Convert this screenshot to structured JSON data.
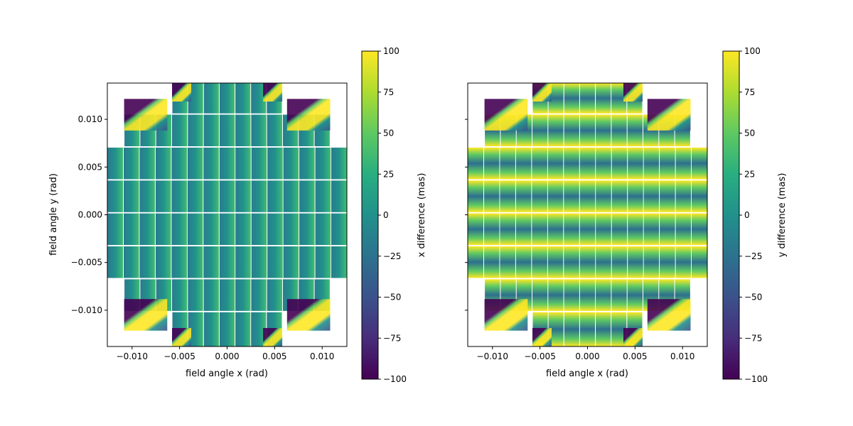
{
  "chart_data": [
    {
      "type": "heatmap",
      "panel": "left",
      "title": "",
      "xlabel": "field angle x (rad)",
      "ylabel": "field angle y (rad)",
      "xlim": [
        -0.0126,
        0.0126
      ],
      "ylim": [
        -0.0138,
        0.0138
      ],
      "xticks": [
        -0.01,
        -0.005,
        0.0,
        0.005,
        0.01
      ],
      "xtick_labels": [
        "−0.010",
        "−0.005",
        "0.000",
        "0.005",
        "0.010"
      ],
      "yticks": [
        -0.01,
        -0.005,
        0.0,
        0.005,
        0.01
      ],
      "ytick_labels": [
        "−0.010",
        "−0.005",
        "0.000",
        "0.005",
        "0.010"
      ],
      "colorbar": {
        "label": "x difference (mas)",
        "range": [
          -100,
          100
        ],
        "ticks": [
          100,
          75,
          50,
          25,
          0,
          -25,
          -50,
          -75,
          -100
        ],
        "tick_labels": [
          "100",
          "75",
          "50",
          "25",
          "0",
          "−25",
          "−50",
          "−75",
          "−100"
        ],
        "colormap": "viridis"
      },
      "pattern": "x-gradient"
    },
    {
      "type": "heatmap",
      "panel": "right",
      "title": "",
      "xlabel": "field angle x (rad)",
      "ylabel": "",
      "xlim": [
        -0.0126,
        0.0126
      ],
      "ylim": [
        -0.0138,
        0.0138
      ],
      "xticks": [
        -0.01,
        -0.005,
        0.0,
        0.005,
        0.01
      ],
      "xtick_labels": [
        "−0.010",
        "−0.005",
        "0.000",
        "0.005",
        "0.010"
      ],
      "yticks": [
        -0.01,
        -0.005,
        0.0,
        0.005,
        0.01
      ],
      "ytick_labels": [
        "",
        "",
        "",
        "",
        ""
      ],
      "colorbar": {
        "label": "y difference (mas)",
        "range": [
          -100,
          100
        ],
        "ticks": [
          100,
          75,
          50,
          25,
          0,
          -25,
          -50,
          -75,
          -100
        ],
        "tick_labels": [
          "100",
          "75",
          "50",
          "25",
          "0",
          "−25",
          "−50",
          "−75",
          "−100"
        ],
        "colormap": "viridis"
      },
      "pattern": "y-gradient"
    }
  ],
  "colors": {
    "viridis_dark": "#440154",
    "viridis_blue": "#3b528b",
    "viridis_teal": "#21918c",
    "viridis_green": "#5ec962",
    "viridis_yellow": "#fde725"
  }
}
